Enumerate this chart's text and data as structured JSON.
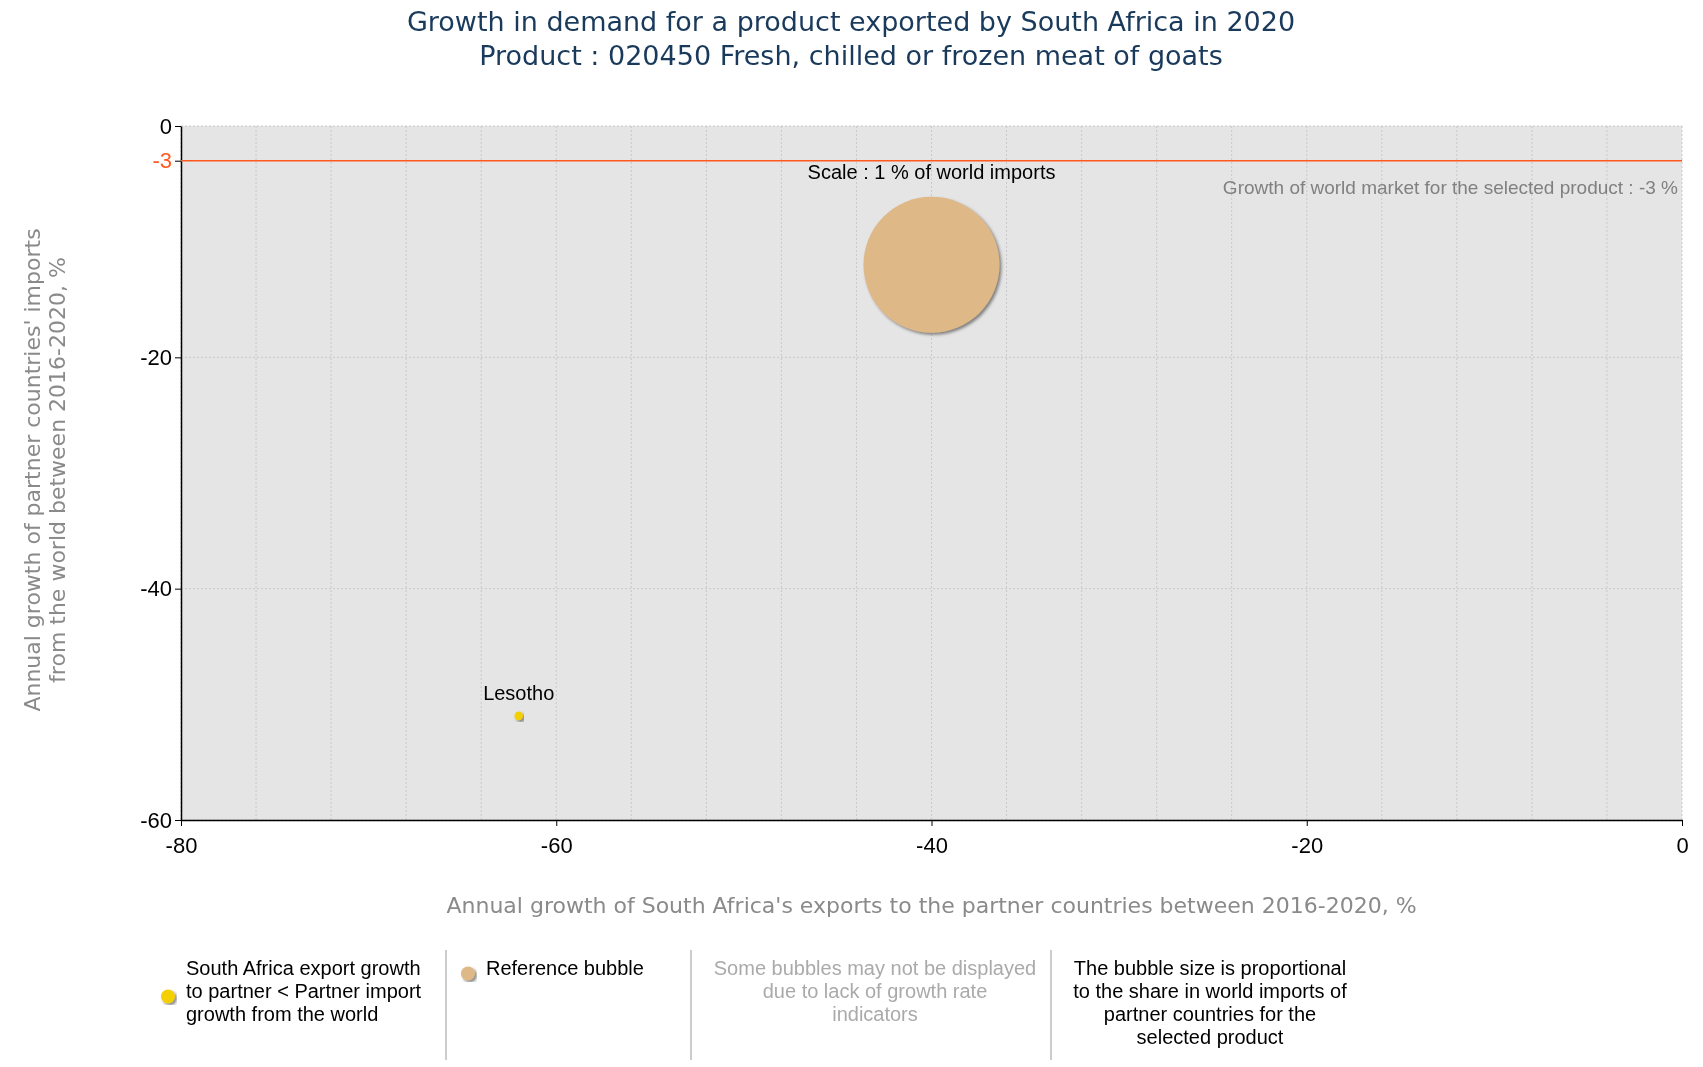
{
  "chart_data": {
    "type": "bubble",
    "title": "Growth in demand for a product exported by South Africa in 2020",
    "subtitle": "Product : 020450 Fresh, chilled or frozen meat of goats",
    "xlabel": "Annual growth of South Africa's exports to the partner countries between 2016-2020, %",
    "ylabel": "Annual growth of partner countries' imports from the world between 2016-2020, %",
    "xlim": [
      -80,
      0
    ],
    "ylim": [
      -60,
      0
    ],
    "xticks": [
      -80,
      {
        "value": -76,
        "label": null
      },
      {
        "value": -72,
        "label": null
      },
      {
        "value": -68,
        "label": null
      },
      {
        "value": -64,
        "label": null
      },
      -60,
      {
        "value": -56,
        "label": null
      },
      {
        "value": -52,
        "label": null
      },
      {
        "value": -48,
        "label": null
      },
      {
        "value": -44,
        "label": null
      },
      -40,
      {
        "value": -36,
        "label": null
      },
      {
        "value": -32,
        "label": null
      },
      {
        "value": -28,
        "label": null
      },
      {
        "value": -24,
        "label": null
      },
      -20,
      {
        "value": -16,
        "label": null
      },
      {
        "value": -12,
        "label": null
      },
      {
        "value": -8,
        "label": null
      },
      {
        "value": -4,
        "label": null
      },
      0
    ],
    "yticks": [
      0,
      -3,
      -20,
      -40,
      -60
    ],
    "grid": true,
    "legend": "bottom",
    "series": [
      {
        "name": "South Africa export growth to partner < Partner import growth from the world",
        "color": "#f5d000",
        "x": [
          -62
        ],
        "values": [
          -51
        ],
        "sizes": [
          0.004
        ]
      },
      {
        "name": "Reference bubble",
        "color": "#deb887",
        "x": [
          -40
        ],
        "values": [
          -12
        ],
        "sizes": [
          1
        ]
      }
    ],
    "ref_lines": [
      {
        "axis": "y",
        "value": -3,
        "label": "Growth of world market for the selected product : -3 %",
        "color": "#ff5a1f"
      }
    ],
    "annotations": [
      {
        "text": "Lesotho",
        "x": -62,
        "y": -51
      },
      "Scale : 1 % of world imports",
      "Some bubbles may not be displayed due to lack of growth rate indicators",
      "The bubble size is proportional to the share in world imports of partner countries for the selected product"
    ]
  }
}
